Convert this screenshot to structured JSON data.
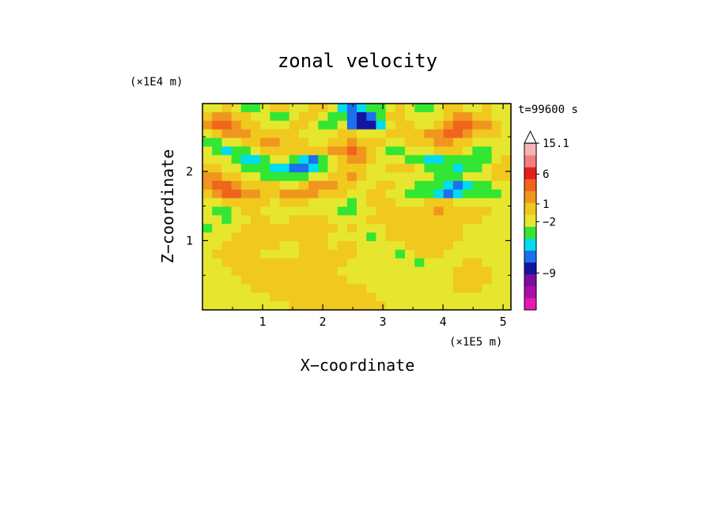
{
  "chart_data": {
    "type": "heatmap",
    "title": "zonal velocity",
    "xlabel": "X−coordinate",
    "ylabel": "Z−coordinate",
    "x_unit": "(×1E5 m)",
    "y_unit": "(×1E4 m)",
    "time_label": "t=99600 s",
    "xlim": [
      0,
      5.13
    ],
    "ylim": [
      0,
      2.98
    ],
    "x_ticks": [
      {
        "value": 1,
        "label": "1"
      },
      {
        "value": 2,
        "label": "2"
      },
      {
        "value": 3,
        "label": "3"
      },
      {
        "value": 4,
        "label": "4"
      },
      {
        "value": 5,
        "label": "5"
      }
    ],
    "y_ticks": [
      {
        "value": 1,
        "label": "1"
      },
      {
        "value": 2,
        "label": "2"
      }
    ],
    "colorbar": {
      "bands": [
        "#e619b4",
        "#ab0fab",
        "#7a0f9e",
        "#1414a0",
        "#1e6ef0",
        "#00dcf0",
        "#33e633",
        "#e6e62e",
        "#f0c81e",
        "#f0961e",
        "#f0641e",
        "#e61e1e",
        "#f08080",
        "#f5b4b4",
        "#ffffff"
      ],
      "labels": [
        {
          "band": 14,
          "text": "15.1"
        },
        {
          "band": 11.4,
          "text": "6"
        },
        {
          "band": 8.9,
          "text": "1"
        },
        {
          "band": 7.4,
          "text": "−2"
        },
        {
          "band": 3.1,
          "text": "−9"
        }
      ]
    },
    "field": [
      [
        7,
        7,
        8,
        7,
        6,
        6,
        7,
        8,
        8,
        7,
        7,
        8,
        8,
        7,
        5,
        4,
        5,
        6,
        6,
        7,
        8,
        7,
        6,
        6,
        7,
        8,
        8,
        7,
        7,
        8,
        7,
        7
      ],
      [
        8,
        9,
        9,
        8,
        8,
        7,
        7,
        6,
        6,
        7,
        8,
        8,
        7,
        6,
        6,
        4,
        3,
        4,
        6,
        8,
        8,
        7,
        7,
        7,
        7,
        8,
        9,
        9,
        8,
        8,
        7,
        7
      ],
      [
        9,
        10,
        10,
        9,
        8,
        8,
        7,
        7,
        7,
        8,
        8,
        7,
        6,
        6,
        7,
        4,
        3,
        3,
        5,
        7,
        8,
        8,
        7,
        7,
        8,
        9,
        10,
        10,
        9,
        9,
        8,
        7
      ],
      [
        7,
        8,
        9,
        9,
        9,
        8,
        8,
        8,
        8,
        8,
        7,
        7,
        7,
        7,
        8,
        8,
        7,
        7,
        7,
        8,
        8,
        8,
        8,
        9,
        9,
        10,
        10,
        9,
        8,
        8,
        8,
        7
      ],
      [
        6,
        6,
        7,
        7,
        8,
        8,
        9,
        9,
        8,
        8,
        8,
        7,
        7,
        8,
        8,
        9,
        8,
        8,
        8,
        7,
        7,
        8,
        8,
        8,
        9,
        9,
        8,
        8,
        7,
        7,
        7,
        7
      ],
      [
        7,
        6,
        5,
        6,
        6,
        7,
        8,
        8,
        8,
        8,
        8,
        8,
        8,
        9,
        9,
        10,
        9,
        8,
        7,
        6,
        6,
        7,
        7,
        7,
        8,
        8,
        8,
        7,
        6,
        6,
        7,
        7
      ],
      [
        7,
        7,
        7,
        6,
        5,
        5,
        6,
        7,
        7,
        6,
        5,
        4,
        6,
        7,
        8,
        9,
        9,
        8,
        7,
        7,
        7,
        6,
        6,
        5,
        5,
        6,
        6,
        6,
        6,
        6,
        7,
        8
      ],
      [
        8,
        8,
        7,
        7,
        6,
        6,
        6,
        5,
        5,
        4,
        4,
        5,
        6,
        7,
        8,
        8,
        8,
        7,
        7,
        8,
        8,
        8,
        7,
        6,
        6,
        6,
        5,
        6,
        6,
        7,
        8,
        8
      ],
      [
        9,
        9,
        8,
        8,
        7,
        7,
        6,
        6,
        6,
        6,
        6,
        7,
        7,
        8,
        8,
        9,
        8,
        7,
        7,
        7,
        7,
        7,
        7,
        7,
        6,
        6,
        6,
        7,
        7,
        7,
        8,
        8
      ],
      [
        9,
        10,
        10,
        9,
        8,
        8,
        8,
        8,
        7,
        7,
        8,
        9,
        9,
        9,
        8,
        8,
        7,
        7,
        8,
        8,
        7,
        7,
        6,
        6,
        6,
        5,
        4,
        5,
        6,
        6,
        7,
        7
      ],
      [
        8,
        9,
        10,
        10,
        9,
        9,
        8,
        8,
        9,
        9,
        9,
        9,
        8,
        8,
        8,
        7,
        7,
        8,
        8,
        7,
        7,
        6,
        6,
        6,
        5,
        4,
        5,
        6,
        6,
        6,
        6,
        7
      ],
      [
        7,
        7,
        8,
        8,
        8,
        8,
        8,
        7,
        8,
        8,
        8,
        7,
        7,
        7,
        7,
        6,
        7,
        8,
        8,
        8,
        7,
        7,
        7,
        8,
        8,
        8,
        7,
        7,
        7,
        7,
        7,
        7
      ],
      [
        7,
        6,
        6,
        7,
        8,
        8,
        7,
        7,
        7,
        7,
        7,
        7,
        7,
        7,
        6,
        6,
        7,
        7,
        8,
        8,
        8,
        8,
        8,
        8,
        9,
        8,
        8,
        8,
        8,
        8,
        7,
        7
      ],
      [
        7,
        7,
        6,
        7,
        7,
        8,
        8,
        7,
        7,
        8,
        8,
        8,
        8,
        7,
        7,
        7,
        7,
        8,
        8,
        8,
        8,
        8,
        8,
        8,
        8,
        8,
        8,
        8,
        8,
        7,
        7,
        7
      ],
      [
        6,
        7,
        7,
        7,
        8,
        8,
        8,
        8,
        8,
        8,
        8,
        8,
        8,
        8,
        7,
        8,
        7,
        7,
        7,
        8,
        8,
        8,
        8,
        8,
        8,
        8,
        8,
        7,
        7,
        7,
        7,
        7
      ],
      [
        7,
        7,
        7,
        8,
        8,
        8,
        8,
        8,
        8,
        8,
        8,
        8,
        8,
        7,
        7,
        7,
        7,
        6,
        7,
        8,
        8,
        8,
        8,
        8,
        8,
        8,
        8,
        7,
        7,
        7,
        7,
        7
      ],
      [
        7,
        7,
        8,
        8,
        8,
        8,
        8,
        8,
        7,
        7,
        8,
        8,
        8,
        7,
        8,
        8,
        7,
        7,
        7,
        7,
        7,
        8,
        8,
        8,
        8,
        8,
        7,
        7,
        7,
        7,
        7,
        7
      ],
      [
        7,
        8,
        8,
        8,
        8,
        8,
        7,
        7,
        7,
        7,
        8,
        8,
        8,
        8,
        8,
        8,
        7,
        7,
        7,
        7,
        6,
        7,
        8,
        8,
        8,
        7,
        7,
        7,
        7,
        7,
        7,
        7
      ],
      [
        7,
        7,
        8,
        8,
        8,
        8,
        8,
        8,
        8,
        8,
        8,
        8,
        8,
        8,
        8,
        7,
        7,
        7,
        7,
        7,
        7,
        7,
        6,
        7,
        7,
        7,
        7,
        8,
        8,
        7,
        7,
        7
      ],
      [
        7,
        7,
        7,
        8,
        8,
        8,
        8,
        8,
        8,
        8,
        8,
        8,
        8,
        8,
        7,
        7,
        7,
        7,
        7,
        7,
        7,
        7,
        7,
        7,
        7,
        7,
        8,
        8,
        8,
        8,
        7,
        7
      ],
      [
        7,
        7,
        7,
        7,
        8,
        8,
        8,
        8,
        8,
        8,
        8,
        8,
        8,
        8,
        8,
        7,
        7,
        7,
        7,
        7,
        7,
        7,
        7,
        7,
        7,
        7,
        8,
        8,
        8,
        8,
        7,
        7
      ],
      [
        7,
        7,
        7,
        7,
        7,
        8,
        8,
        8,
        8,
        8,
        8,
        8,
        8,
        8,
        8,
        8,
        8,
        7,
        7,
        7,
        7,
        7,
        7,
        7,
        7,
        7,
        8,
        8,
        8,
        7,
        7,
        7
      ],
      [
        7,
        7,
        7,
        7,
        7,
        7,
        7,
        8,
        8,
        8,
        8,
        8,
        8,
        8,
        8,
        8,
        8,
        8,
        7,
        7,
        7,
        7,
        7,
        7,
        7,
        7,
        7,
        7,
        7,
        7,
        7,
        7
      ],
      [
        7,
        7,
        7,
        7,
        7,
        7,
        7,
        7,
        7,
        8,
        8,
        8,
        8,
        8,
        8,
        8,
        8,
        8,
        8,
        7,
        7,
        7,
        7,
        7,
        7,
        7,
        7,
        7,
        7,
        7,
        7,
        7
      ]
    ]
  }
}
